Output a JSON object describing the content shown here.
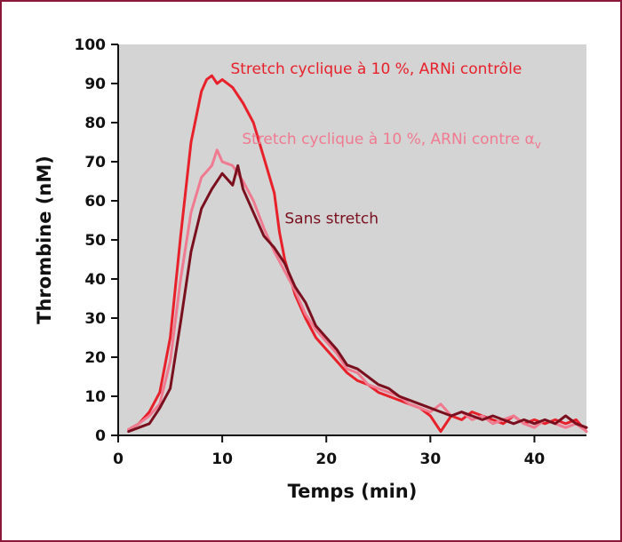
{
  "chart_data": {
    "type": "line",
    "title": "",
    "xlabel": "Temps (min)",
    "ylabel": "Thrombine (nM)",
    "xlim": [
      0,
      45
    ],
    "ylim": [
      0,
      100
    ],
    "xticks": [
      0,
      10,
      20,
      30,
      40
    ],
    "yticks": [
      0,
      10,
      20,
      30,
      40,
      50,
      60,
      70,
      80,
      90,
      100
    ],
    "grid": false,
    "plot_background": "#d4d4d4",
    "legend": "inline labels",
    "series": [
      {
        "name": "Stretch cyclique à 10 %, ARNi contrôle",
        "color": "#e8202a",
        "label_color": "#e8202a",
        "x": [
          1,
          2,
          3,
          4,
          5,
          6,
          7,
          8,
          8.5,
          9,
          9.5,
          10,
          11,
          12,
          13,
          14,
          15,
          15.5,
          16,
          17,
          18,
          19,
          20,
          21,
          22,
          23,
          24,
          25,
          26,
          27,
          28,
          29,
          30,
          31,
          32,
          33,
          34,
          35,
          36,
          37,
          38,
          39,
          40,
          41,
          42,
          43,
          44,
          45
        ],
        "y": [
          1.5,
          3,
          6,
          11,
          25,
          51,
          75,
          88,
          91,
          92,
          90,
          91,
          89,
          85,
          80,
          71,
          62,
          52,
          45,
          36,
          30,
          25,
          22,
          19,
          16,
          14,
          13,
          11,
          10,
          9,
          8,
          7,
          5,
          1,
          5,
          4,
          6,
          5,
          4,
          3,
          5,
          3,
          4,
          3,
          4,
          3,
          4,
          1
        ]
      },
      {
        "name": "Stretch cyclique à 10 %, ARNi contre α",
        "name_subscript": "v",
        "color": "#f07a90",
        "label_color": "#f07a90",
        "x": [
          1,
          2,
          3,
          4,
          5,
          6,
          7,
          8,
          9,
          9.5,
          10,
          11,
          12,
          13,
          14,
          15,
          16,
          17,
          18,
          19,
          20,
          21,
          22,
          23,
          24,
          25,
          26,
          27,
          28,
          29,
          30,
          31,
          32,
          33,
          34,
          35,
          36,
          37,
          38,
          39,
          40,
          41,
          42,
          43,
          44,
          45
        ],
        "y": [
          1.5,
          3,
          5,
          8,
          19,
          40,
          57,
          66,
          69,
          73,
          70,
          69,
          65,
          60,
          53,
          47,
          42,
          37,
          31,
          27,
          24,
          21,
          17,
          16,
          13,
          12,
          11,
          10,
          8,
          7,
          6,
          8,
          5,
          6,
          4,
          5,
          3,
          4,
          5,
          3,
          2,
          4,
          3,
          2,
          3,
          1
        ]
      },
      {
        "name": "Sans stretch",
        "color": "#7a0f1e",
        "label_color": "#7a0f1e",
        "x": [
          1,
          2,
          3,
          4,
          5,
          6,
          7,
          8,
          9,
          10,
          11,
          11.5,
          12,
          13,
          14,
          15,
          16,
          17,
          18,
          19,
          20,
          21,
          22,
          23,
          24,
          25,
          26,
          27,
          28,
          29,
          30,
          31,
          32,
          33,
          34,
          35,
          36,
          37,
          38,
          39,
          40,
          41,
          42,
          43,
          44,
          45
        ],
        "y": [
          1,
          2,
          3,
          7,
          12,
          29,
          47,
          58,
          63,
          67,
          64,
          69,
          63,
          57,
          51,
          48,
          44,
          38,
          34,
          28,
          25,
          22,
          18,
          17,
          15,
          13,
          12,
          10,
          9,
          8,
          7,
          6,
          5,
          6,
          5,
          4,
          5,
          4,
          3,
          4,
          3,
          4,
          3,
          5,
          3,
          2
        ]
      }
    ]
  }
}
